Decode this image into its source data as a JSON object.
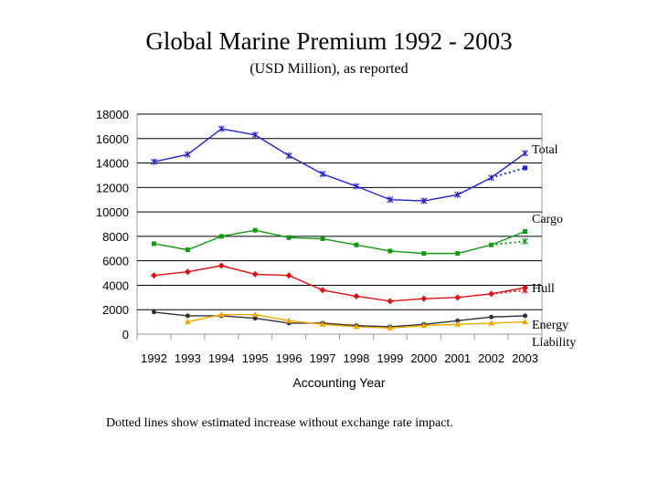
{
  "chart_data": {
    "type": "line",
    "title": "Global Marine Premium 1992 - 2003",
    "subtitle": "(USD Million), as reported",
    "xlabel": "Accounting Year",
    "ylabel": "",
    "ylim": [
      0,
      18000
    ],
    "yticks": [
      0,
      2000,
      4000,
      6000,
      8000,
      10000,
      12000,
      14000,
      16000,
      18000
    ],
    "categories": [
      "1992",
      "1993",
      "1994",
      "1995",
      "1996",
      "1997",
      "1998",
      "1999",
      "2000",
      "2001",
      "2002",
      "2003"
    ],
    "series": [
      {
        "name": "Total",
        "color": "#2222cc",
        "marker": "star",
        "values": [
          14100,
          14700,
          16800,
          16300,
          14600,
          13100,
          12100,
          11000,
          10900,
          11400,
          12800,
          14800
        ],
        "estimated": {
          "x": [
            "2002",
            "2003"
          ],
          "values": [
            12800,
            13600
          ]
        }
      },
      {
        "name": "Cargo",
        "color": "#119911",
        "marker": "square",
        "values": [
          7400,
          6900,
          8000,
          8500,
          7900,
          7800,
          7300,
          6800,
          6600,
          6600,
          7300,
          8400
        ],
        "estimated": {
          "x": [
            "2002",
            "2003"
          ],
          "values": [
            7300,
            7600
          ]
        }
      },
      {
        "name": "Hull",
        "color": "#dd1111",
        "marker": "diamond",
        "values": [
          4800,
          5100,
          5600,
          4900,
          4800,
          3600,
          3100,
          2700,
          2900,
          3000,
          3300,
          3800
        ],
        "estimated": {
          "x": [
            "2002",
            "2003"
          ],
          "values": [
            3300,
            3600
          ]
        }
      },
      {
        "name": "Energy",
        "color": "#333333",
        "marker": "circle",
        "values": [
          1800,
          1500,
          1500,
          1300,
          900,
          900,
          700,
          600,
          800,
          1100,
          1400,
          1500
        ]
      },
      {
        "name": "Liability",
        "color": "#f0a800",
        "marker": "triangle",
        "values": [
          null,
          1000,
          1600,
          1600,
          1100,
          800,
          600,
          500,
          700,
          800,
          900,
          1000
        ]
      }
    ],
    "labels": [
      "Total",
      "Cargo",
      "Hull",
      "Energy",
      "Liability"
    ],
    "note": "Dotted lines show estimated increase without exchange rate impact."
  }
}
